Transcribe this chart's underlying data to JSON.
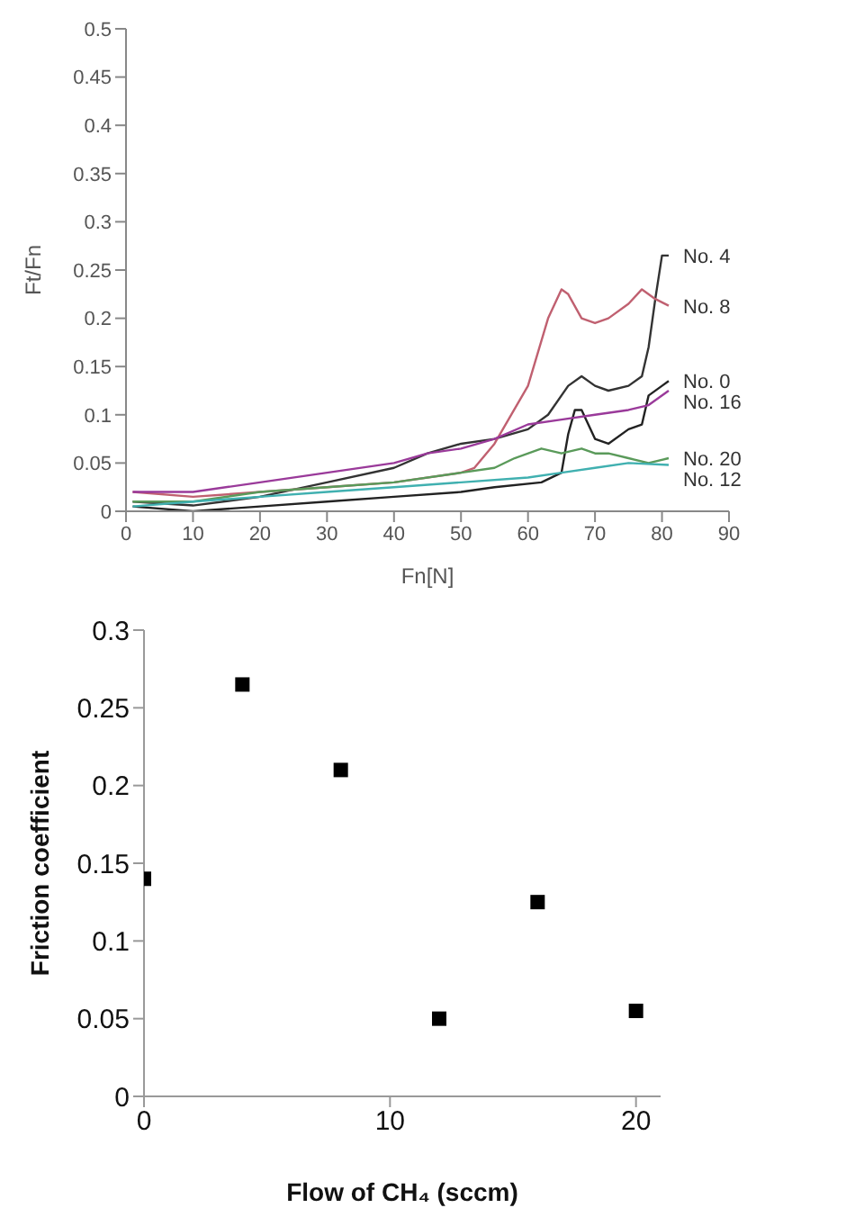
{
  "chart_data": [
    {
      "type": "line",
      "xlabel": "Fn[N]",
      "ylabel": "Ft/Fn",
      "xlim": [
        0,
        90
      ],
      "xticks": [
        0,
        10,
        20,
        30,
        40,
        50,
        60,
        70,
        80,
        90
      ],
      "ylim": [
        0,
        0.5
      ],
      "yticks": [
        0,
        0.05,
        0.1,
        0.15,
        0.2,
        0.25,
        0.3,
        0.35,
        0.4,
        0.45,
        0.5
      ],
      "series": [
        {
          "name": "No. 4",
          "color": "#333333",
          "x": [
            1,
            10,
            20,
            30,
            40,
            45,
            50,
            55,
            60,
            63,
            66,
            68,
            70,
            72,
            75,
            77,
            78,
            79,
            80,
            81
          ],
          "values": [
            0.01,
            0.006,
            0.015,
            0.03,
            0.045,
            0.06,
            0.07,
            0.075,
            0.085,
            0.1,
            0.13,
            0.14,
            0.13,
            0.125,
            0.13,
            0.14,
            0.17,
            0.22,
            0.265,
            0.265
          ]
        },
        {
          "name": "No. 8",
          "color": "#c06070",
          "x": [
            1,
            10,
            20,
            30,
            40,
            50,
            52,
            55,
            60,
            63,
            65,
            66,
            68,
            70,
            72,
            75,
            77,
            79,
            81
          ],
          "values": [
            0.02,
            0.015,
            0.02,
            0.025,
            0.03,
            0.04,
            0.045,
            0.07,
            0.13,
            0.2,
            0.23,
            0.225,
            0.2,
            0.195,
            0.2,
            0.215,
            0.23,
            0.22,
            0.213
          ]
        },
        {
          "name": "No. 0",
          "color": "#222222",
          "x": [
            1,
            10,
            20,
            30,
            40,
            50,
            55,
            62,
            65,
            66,
            67,
            68,
            70,
            72,
            75,
            77,
            78,
            80,
            81
          ],
          "values": [
            0.005,
            0,
            0.005,
            0.01,
            0.015,
            0.02,
            0.025,
            0.03,
            0.04,
            0.08,
            0.105,
            0.105,
            0.075,
            0.07,
            0.085,
            0.09,
            0.12,
            0.13,
            0.135
          ]
        },
        {
          "name": "No. 16",
          "color": "#9a3a9a",
          "x": [
            1,
            10,
            20,
            30,
            40,
            45,
            50,
            55,
            60,
            65,
            70,
            75,
            78,
            81
          ],
          "values": [
            0.02,
            0.02,
            0.03,
            0.04,
            0.05,
            0.06,
            0.065,
            0.075,
            0.09,
            0.095,
            0.1,
            0.105,
            0.11,
            0.125
          ]
        },
        {
          "name": "No. 20",
          "color": "#5a9a5a",
          "x": [
            1,
            10,
            20,
            30,
            40,
            50,
            55,
            58,
            62,
            65,
            68,
            70,
            72,
            75,
            78,
            81
          ],
          "values": [
            0.01,
            0.01,
            0.02,
            0.025,
            0.03,
            0.04,
            0.045,
            0.055,
            0.065,
            0.06,
            0.065,
            0.06,
            0.06,
            0.055,
            0.05,
            0.055
          ]
        },
        {
          "name": "No. 12",
          "color": "#40b0b0",
          "x": [
            1,
            10,
            20,
            30,
            40,
            50,
            60,
            65,
            70,
            75,
            81
          ],
          "values": [
            0.005,
            0.01,
            0.015,
            0.02,
            0.025,
            0.03,
            0.035,
            0.04,
            0.045,
            0.05,
            0.048
          ]
        }
      ]
    },
    {
      "type": "scatter",
      "xlabel": "Flow of  CH₄ (sccm)",
      "ylabel": "Friction coefficient",
      "xlim": [
        0,
        21
      ],
      "xticks": [
        0,
        10,
        20
      ],
      "ylim": [
        0,
        0.3
      ],
      "yticks": [
        0,
        0.05,
        0.1,
        0.15,
        0.2,
        0.25,
        0.3
      ],
      "marker": "square",
      "series": [
        {
          "color": "#000000",
          "x": [
            0,
            4,
            8,
            12,
            16,
            20
          ],
          "values": [
            0.14,
            0.265,
            0.21,
            0.05,
            0.125,
            0.055
          ]
        }
      ]
    }
  ]
}
